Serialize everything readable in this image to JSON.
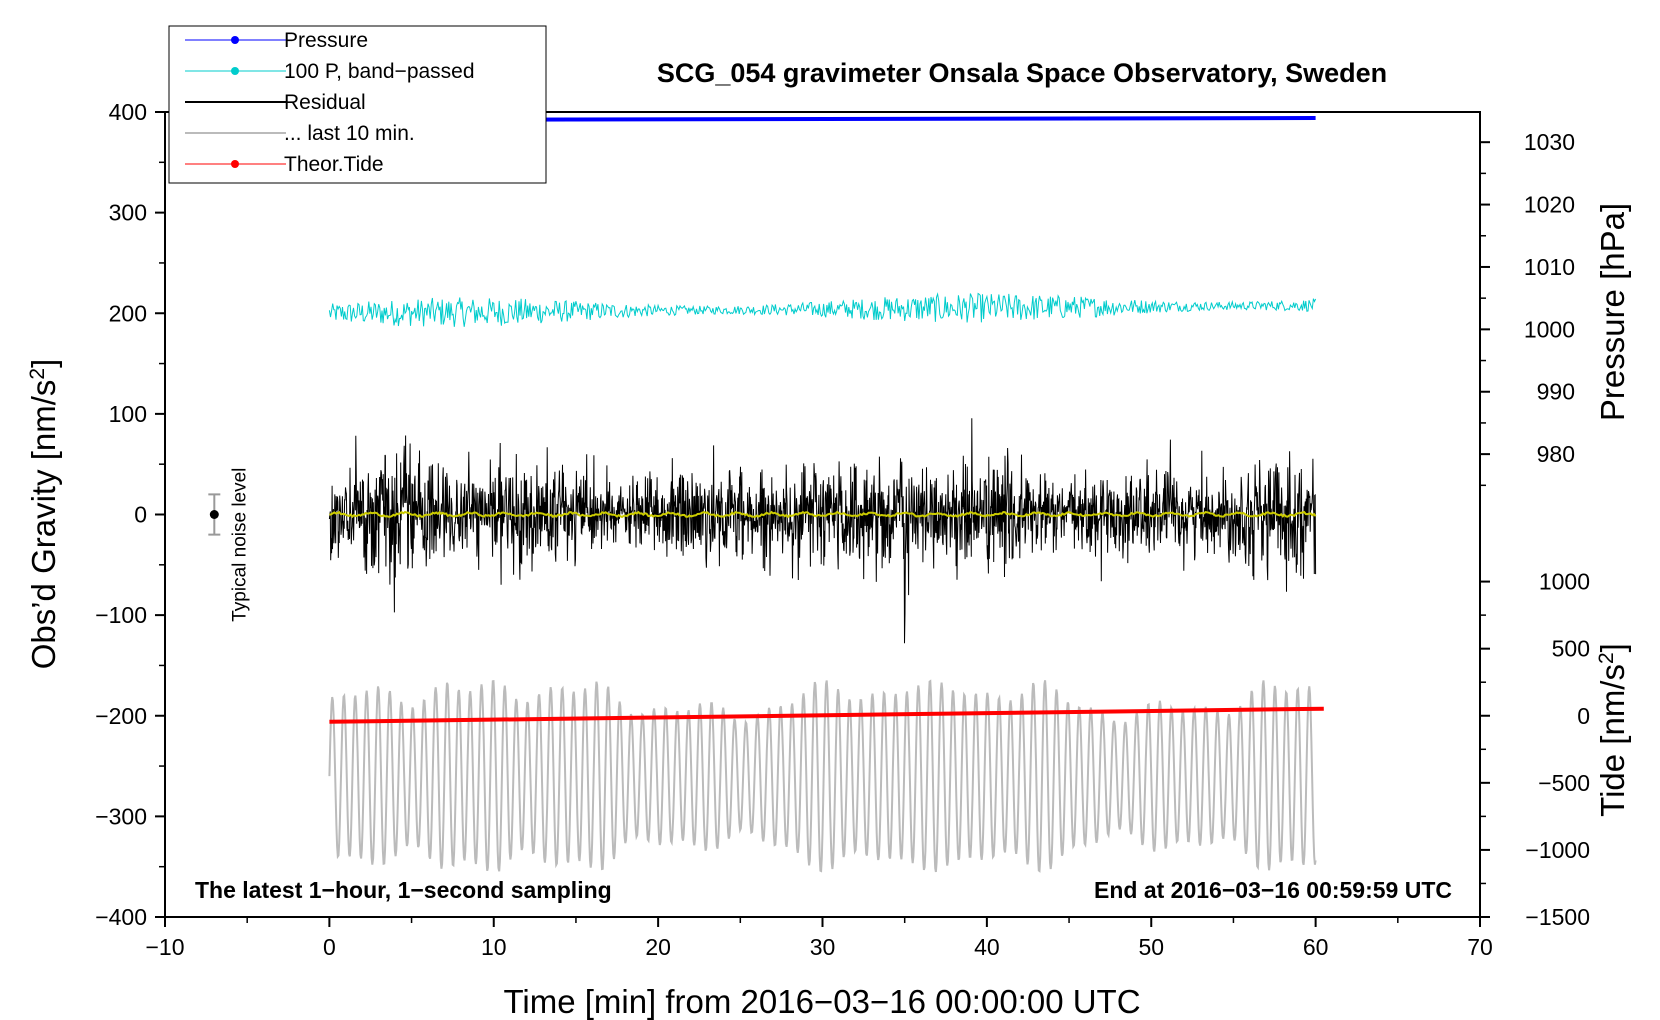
{
  "chart_data": {
    "type": "line",
    "title": "SCG_054 gravimeter Onsala Space Observatory, Sweden",
    "xlabel": "Time [min] from 2016−03−16 00:00:00 UTC",
    "ylabel_left": "Obs’d Gravity [nm/s",
    "ylabel_left_sup": "2",
    "ylabel_left_end": "]",
    "ylabel_right_top": "Pressure [hPa]",
    "ylabel_right_bottom": "Tide [nm/s",
    "ylabel_right_bottom_sup": "2",
    "ylabel_right_bottom_end": "]",
    "xlim": [
      -10,
      70
    ],
    "ylim": [
      -400,
      400
    ],
    "x_ticks": [
      "−10",
      "0",
      "10",
      "20",
      "30",
      "40",
      "50",
      "60",
      "70"
    ],
    "x_tick_values": [
      -10,
      0,
      10,
      20,
      30,
      40,
      50,
      60,
      70
    ],
    "y_ticks": [
      "400",
      "300",
      "200",
      "100",
      "0",
      "−100",
      "−200",
      "−300",
      "−400"
    ],
    "y_tick_values": [
      400,
      300,
      200,
      100,
      0,
      -100,
      -200,
      -300,
      -400
    ],
    "pressure_axis": {
      "ticks": [
        "1030",
        "1020",
        "1010",
        "1000",
        "990",
        "980"
      ],
      "tick_values": [
        1030,
        1020,
        1010,
        1000,
        990,
        980
      ],
      "note": "1030 hPa aligns with gravity 370; 980 hPa aligns with gravity 60"
    },
    "tide_axis": {
      "ticks": [
        "1000",
        "500",
        "0",
        "−500",
        "−1000",
        "−1500"
      ],
      "tick_values": [
        1000,
        500,
        0,
        -500,
        -1000,
        -1500
      ],
      "note": "1000 nm/s2 aligns with gravity -66.7; -1500 aligns with -400"
    },
    "legend": [
      {
        "label": "Pressure",
        "color": "#0000ff",
        "marker": true
      },
      {
        "label": "100 P, band−passed",
        "color": "#00cccc",
        "marker": true
      },
      {
        "label": "Residual",
        "color": "#000000",
        "marker": false
      },
      {
        "label": "... last 10 min.",
        "color": "#bbbbbb",
        "marker": false
      },
      {
        "label": "Theor.Tide",
        "color": "#ff0000",
        "marker": true
      }
    ],
    "series": [
      {
        "name": "Pressure",
        "color": "#0000ff",
        "description": "flat line near gravity 392-394 (pressure ~1034 hPa)",
        "x_range": [
          0,
          60
        ],
        "y_start": 392,
        "y_end": 394
      },
      {
        "name": "100 P, band-passed",
        "color": "#00cccc",
        "center": 200,
        "amplitude_range": [
          10,
          35
        ],
        "x_range": [
          0,
          60
        ]
      },
      {
        "name": "Residual",
        "color": "#000000",
        "center": 0,
        "amplitude_range": [
          30,
          130
        ],
        "x_range": [
          0,
          60
        ]
      },
      {
        "name": "Residual mean (last 10 min.)",
        "color": "#cccc00",
        "center": 0,
        "x_range": [
          0,
          60
        ]
      },
      {
        "name": "Theor.Tide",
        "color": "#ff0000",
        "x_range": [
          0,
          60.5
        ],
        "y_start": -206,
        "y_end": -193
      },
      {
        "name": "... last 10 min.",
        "color": "#bbbbbb",
        "center": -260,
        "amplitude_range": [
          20,
          90
        ],
        "x_range": [
          0,
          60
        ]
      }
    ],
    "noise_indicator": {
      "label": "Typical noise level",
      "x": -7,
      "y": 0,
      "error": 20
    },
    "footer_left": "The latest 1−hour, 1−second sampling",
    "footer_right": "End at 2016−03−16 00:59:59 UTC"
  }
}
